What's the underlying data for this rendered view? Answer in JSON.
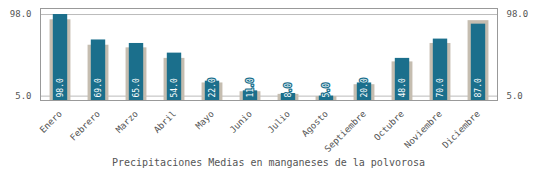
{
  "chart_data": {
    "type": "bar",
    "title": "Precipitaciones Medias en manganeses de la polvorosa",
    "categories": [
      "Enero",
      "Febrero",
      "Marzo",
      "Abril",
      "Mayo",
      "Junio",
      "Julio",
      "Agosto",
      "Septiembre",
      "Octubre",
      "Noviembre",
      "Diciembre"
    ],
    "series": [
      {
        "color": "#c5bdb0",
        "values": [
          92.0,
          63.0,
          60.0,
          48.0,
          20.0,
          10.0,
          7.0,
          4.5,
          18.0,
          44.0,
          65.0,
          91.0
        ]
      },
      {
        "color": "#1b6f8c",
        "values": [
          98.0,
          69.0,
          65.0,
          54.0,
          22.0,
          11.0,
          8.0,
          5.0,
          20.0,
          48.0,
          70.0,
          87.0
        ],
        "value_labels": [
          "98.0",
          "69.0",
          "65.0",
          "54.0",
          "22.0",
          "11.0",
          "8.0",
          "5.0",
          "20.0",
          "48.0",
          "70.0",
          "87.0"
        ]
      }
    ],
    "data_labels": true,
    "ylim": [
      0,
      104.86
    ],
    "yticks": [
      {
        "value": 5.0,
        "label": "5.0"
      },
      {
        "value": 98.0,
        "label": "98.0"
      }
    ],
    "grid": true
  }
}
